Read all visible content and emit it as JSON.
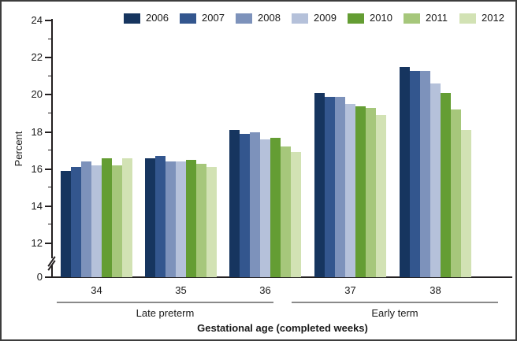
{
  "chart_data": {
    "type": "bar",
    "title": "",
    "ylabel": "Percent",
    "xlabel": "Gestational age (completed weeks)",
    "categories": [
      "34",
      "35",
      "36",
      "37",
      "38"
    ],
    "category_groups": [
      {
        "label": "Late preterm",
        "categories": [
          "34",
          "35",
          "36"
        ]
      },
      {
        "label": "Early term",
        "categories": [
          "37",
          "38"
        ]
      }
    ],
    "series": [
      {
        "name": "2006",
        "color": "#16355f",
        "values": [
          15.9,
          16.6,
          18.1,
          20.1,
          21.5
        ]
      },
      {
        "name": "2007",
        "color": "#33568e",
        "values": [
          16.1,
          16.7,
          17.9,
          19.9,
          21.3
        ]
      },
      {
        "name": "2008",
        "color": "#7d92bb",
        "values": [
          16.4,
          16.4,
          18.0,
          19.9,
          21.3
        ]
      },
      {
        "name": "2009",
        "color": "#b5c1da",
        "values": [
          16.2,
          16.4,
          17.6,
          19.5,
          20.6
        ]
      },
      {
        "name": "2010",
        "color": "#649d33",
        "values": [
          16.6,
          16.5,
          17.7,
          19.4,
          20.1
        ]
      },
      {
        "name": "2011",
        "color": "#a6c77b",
        "values": [
          16.2,
          16.3,
          17.2,
          19.3,
          19.2
        ]
      },
      {
        "name": "2012",
        "color": "#d2e2b4",
        "values": [
          16.6,
          16.1,
          16.9,
          18.9,
          18.1
        ]
      }
    ],
    "yticks_major": [
      24,
      22,
      20,
      18,
      16,
      14,
      12,
      0
    ],
    "yticks_minor": [
      23,
      21,
      19,
      17,
      15,
      13
    ],
    "axis_break_between": [
      0,
      12
    ],
    "ylim": [
      0,
      24
    ],
    "legend_position": "top",
    "grid": false
  }
}
